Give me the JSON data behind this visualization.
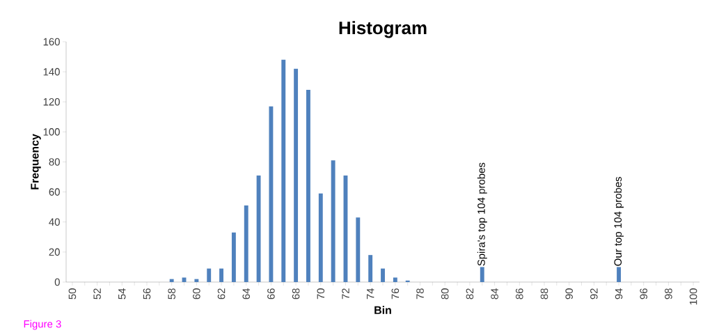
{
  "chart_data": {
    "type": "bar",
    "title": "Histogram",
    "xlabel": "Bin",
    "ylabel": "Frequency",
    "color": "#4f81bd",
    "x": [
      50,
      51,
      52,
      53,
      54,
      55,
      56,
      57,
      58,
      59,
      60,
      61,
      62,
      63,
      64,
      65,
      66,
      67,
      68,
      69,
      70,
      71,
      72,
      73,
      74,
      75,
      76,
      77,
      78,
      79,
      80,
      81,
      82,
      83,
      84,
      85,
      86,
      87,
      88,
      89,
      90,
      91,
      92,
      93,
      94,
      95,
      96,
      97,
      98,
      99,
      100
    ],
    "values": [
      0,
      0,
      0,
      0,
      0,
      0,
      0,
      0,
      2,
      3,
      2,
      9,
      9,
      33,
      51,
      71,
      117,
      148,
      142,
      128,
      59,
      81,
      71,
      43,
      18,
      9,
      3,
      1,
      0,
      0,
      0,
      0,
      0,
      10,
      0,
      0,
      0,
      0,
      0,
      0,
      0,
      0,
      0,
      0,
      10,
      0,
      0,
      0,
      0,
      0,
      0
    ],
    "xlim": [
      49.5,
      100.5
    ],
    "xticks": [
      50,
      {
        "value": 51,
        "label": null
      },
      52,
      {
        "value": 53,
        "label": null
      },
      54,
      {
        "value": 55,
        "label": null
      },
      56,
      {
        "value": 57,
        "label": null
      },
      58,
      {
        "value": 59,
        "label": null
      },
      60,
      {
        "value": 61,
        "label": null
      },
      62,
      {
        "value": 63,
        "label": null
      },
      64,
      {
        "value": 65,
        "label": null
      },
      66,
      {
        "value": 67,
        "label": null
      },
      68,
      {
        "value": 69,
        "label": null
      },
      70,
      {
        "value": 71,
        "label": null
      },
      72,
      {
        "value": 73,
        "label": null
      },
      74,
      {
        "value": 75,
        "label": null
      },
      76,
      {
        "value": 77,
        "label": null
      },
      78,
      {
        "value": 79,
        "label": null
      },
      80,
      {
        "value": 81,
        "label": null
      },
      82,
      {
        "value": 83,
        "label": null
      },
      84,
      {
        "value": 85,
        "label": null
      },
      86,
      {
        "value": 87,
        "label": null
      },
      88,
      {
        "value": 89,
        "label": null
      },
      90,
      {
        "value": 91,
        "label": null
      },
      92,
      {
        "value": 93,
        "label": null
      },
      94,
      {
        "value": 95,
        "label": null
      },
      96,
      {
        "value": 97,
        "label": null
      },
      98,
      {
        "value": 99,
        "label": null
      },
      100
    ],
    "ylim": [
      0,
      160
    ],
    "yticks": [
      0,
      20,
      40,
      60,
      80,
      100,
      120,
      140,
      160
    ],
    "grid": false,
    "annotations": [
      {
        "text": "Spira's top 104 probes",
        "x": 83,
        "y": 10
      },
      {
        "text": "Our top 104 probes",
        "x": 94,
        "y": 10
      },
      "Figure 3"
    ]
  }
}
